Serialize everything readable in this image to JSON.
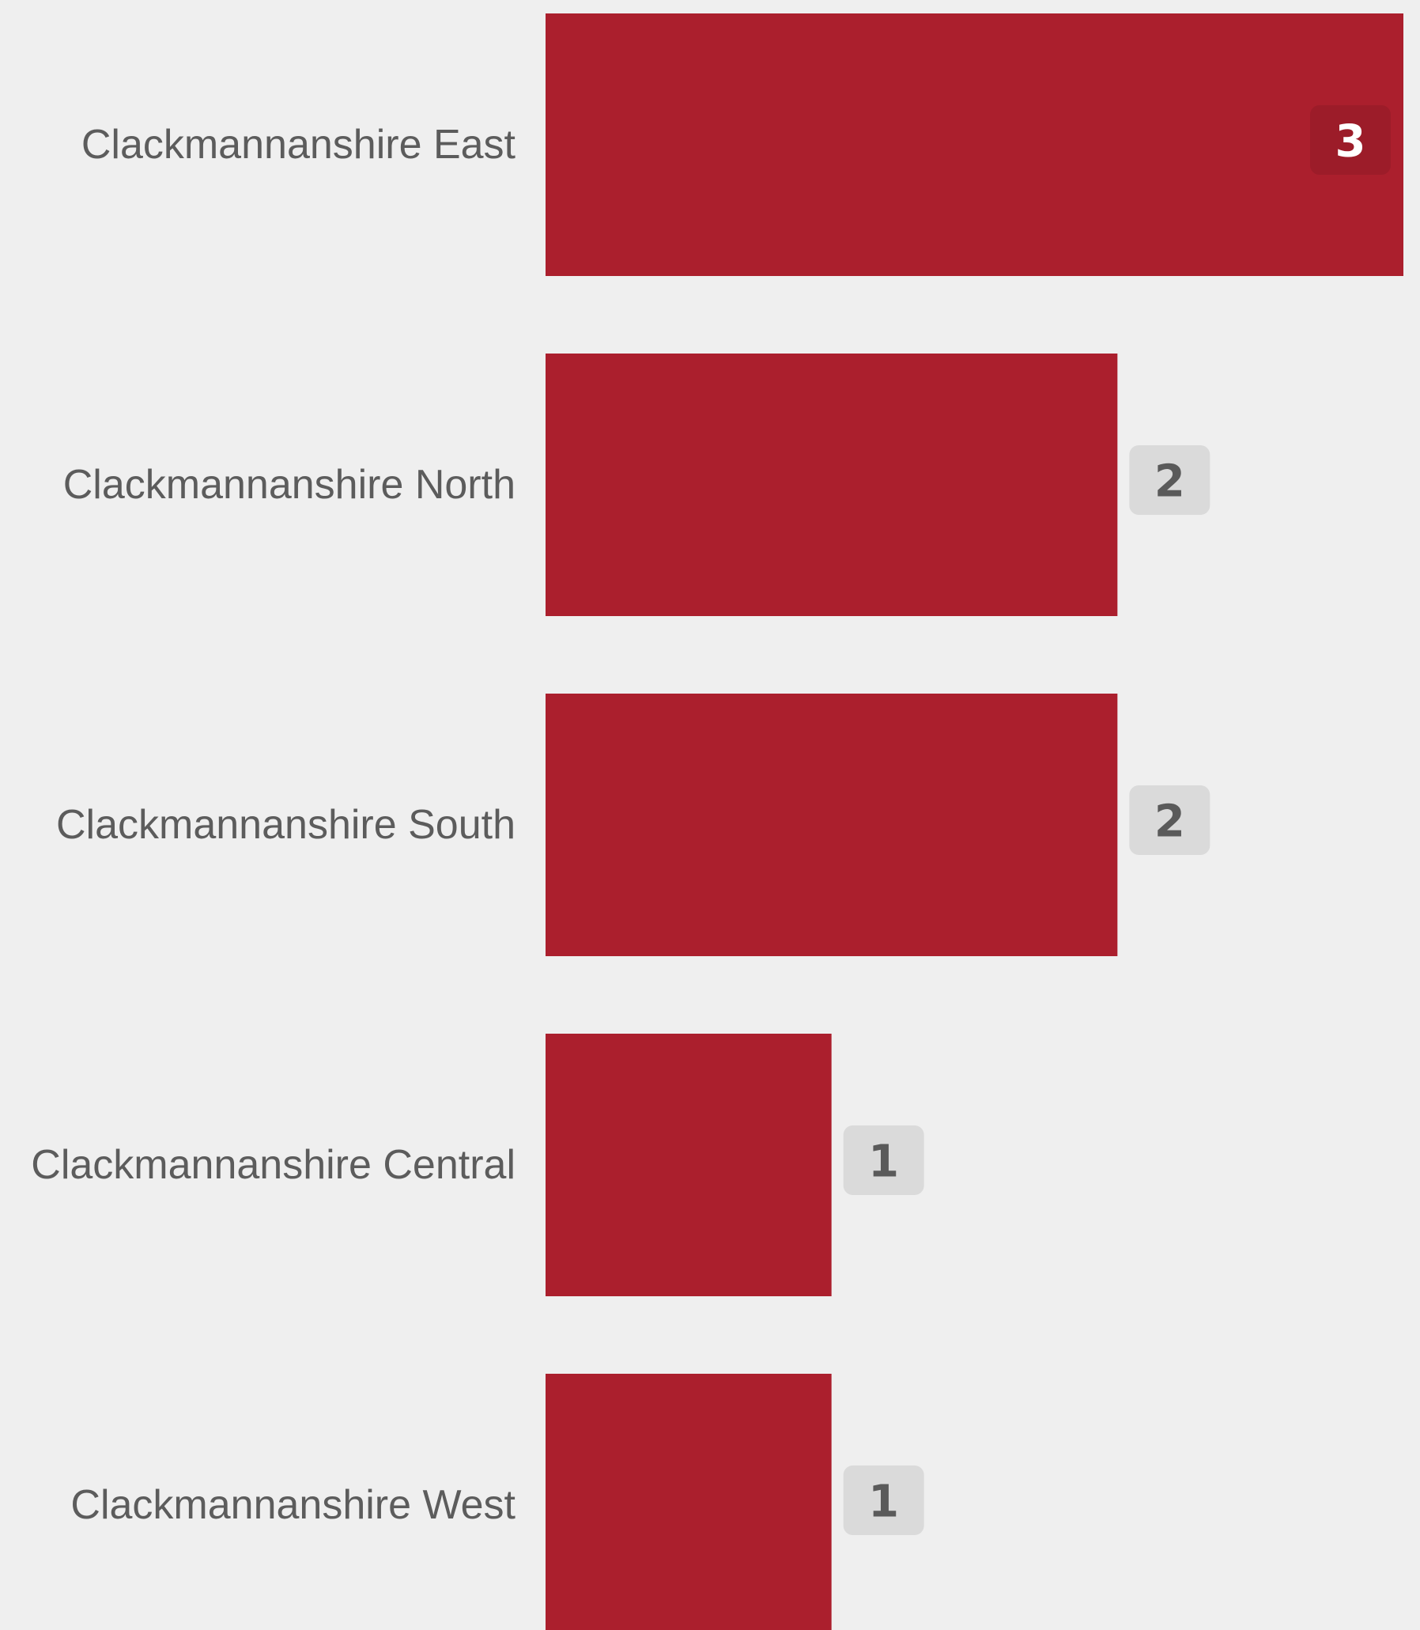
{
  "chart_data": {
    "type": "bar",
    "orientation": "horizontal",
    "categories": [
      "Clackmannanshire East",
      "Clackmannanshire North",
      "Clackmannanshire South",
      "Clackmannanshire Central",
      "Clackmannanshire West"
    ],
    "values": [
      3,
      2,
      2,
      1,
      1
    ],
    "xlim": [
      0,
      3
    ],
    "grid": false,
    "legend": "none"
  },
  "colors": {
    "background": "#efefef",
    "bar": "#ab1f2d",
    "label_text": "#5c5c5c",
    "value_badge": "#dadada",
    "value_badge_text": "#5a5a5a",
    "value_badge_inside": "#9c1c29",
    "value_badge_inside_text": "#ffffff"
  }
}
